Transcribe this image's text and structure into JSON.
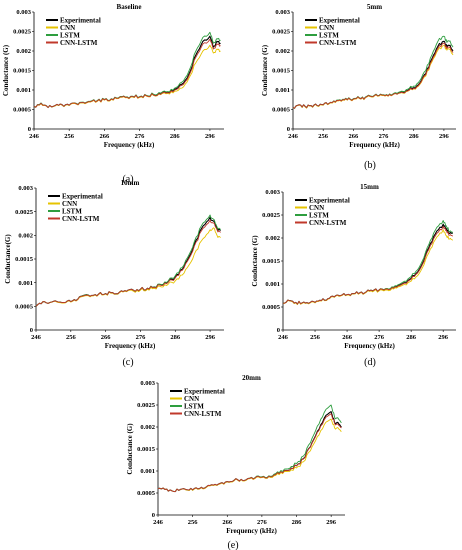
{
  "chart_data": [
    {
      "type": "line",
      "panel": "(a)",
      "title": "Baseline",
      "xlabel": "Frequency (kHz)",
      "ylabel": "Conductance (G)",
      "xlim": [
        246,
        300
      ],
      "ylim": [
        0,
        0.003
      ],
      "xticks": [
        246,
        256,
        266,
        276,
        286,
        296
      ],
      "yticks": [
        0,
        0.0005,
        0.001,
        0.0015,
        0.002,
        0.0025,
        0.003
      ],
      "legend": "top-left",
      "x": [
        246,
        248,
        250,
        252,
        254,
        256,
        258,
        260,
        262,
        264,
        266,
        268,
        270,
        272,
        274,
        276,
        278,
        280,
        282,
        284,
        286,
        288,
        290,
        292,
        294,
        296,
        297,
        298,
        299
      ],
      "series": [
        {
          "name": "Experimental",
          "color": "#000000",
          "values": [
            0.00058,
            0.00066,
            0.00055,
            0.0006,
            0.00062,
            0.00061,
            0.00065,
            0.00068,
            0.0007,
            0.00072,
            0.00075,
            0.00077,
            0.00079,
            0.00081,
            0.00083,
            0.00082,
            0.00085,
            0.00088,
            0.0009,
            0.00094,
            0.00102,
            0.00115,
            0.0014,
            0.0019,
            0.00225,
            0.00238,
            0.0021,
            0.00225,
            0.0022
          ]
        },
        {
          "name": "CNN",
          "color": "#e6c300",
          "values": [
            0.00058,
            0.00065,
            0.00055,
            0.00059,
            0.00061,
            0.0006,
            0.00064,
            0.00067,
            0.00069,
            0.00071,
            0.00074,
            0.00076,
            0.00078,
            0.0008,
            0.00082,
            0.00081,
            0.00084,
            0.00086,
            0.00088,
            0.00091,
            0.00097,
            0.00105,
            0.0013,
            0.0017,
            0.002,
            0.00215,
            0.00195,
            0.00205,
            0.002
          ]
        },
        {
          "name": "LSTM",
          "color": "#2e9e3f",
          "values": [
            0.00058,
            0.00067,
            0.00055,
            0.0006,
            0.00062,
            0.00061,
            0.00066,
            0.00069,
            0.00071,
            0.00073,
            0.00076,
            0.00078,
            0.0008,
            0.00082,
            0.00084,
            0.00083,
            0.00086,
            0.00089,
            0.00092,
            0.00096,
            0.00105,
            0.0012,
            0.00148,
            0.002,
            0.00235,
            0.00248,
            0.0022,
            0.00232,
            0.00228
          ]
        },
        {
          "name": "CNN-LSTM",
          "color": "#c0392b",
          "values": [
            0.00058,
            0.00066,
            0.00055,
            0.0006,
            0.00062,
            0.00061,
            0.00065,
            0.00068,
            0.0007,
            0.00072,
            0.00075,
            0.00077,
            0.00079,
            0.00081,
            0.00083,
            0.00082,
            0.00085,
            0.00087,
            0.00089,
            0.00093,
            0.001,
            0.00112,
            0.00136,
            0.00184,
            0.00218,
            0.0023,
            0.00205,
            0.00218,
            0.00214
          ]
        }
      ]
    },
    {
      "type": "line",
      "panel": "(b)",
      "title": "5mm",
      "xlabel": "Frequency (kHz)",
      "ylabel": "Conductance (G)",
      "xlim": [
        246,
        300
      ],
      "ylim": [
        0,
        0.003
      ],
      "xticks": [
        246,
        256,
        266,
        276,
        286,
        296
      ],
      "yticks": [
        0,
        0.0005,
        0.001,
        0.0015,
        0.002,
        0.0025,
        0.003
      ],
      "legend": "top-left",
      "x": [
        246,
        248,
        250,
        252,
        254,
        256,
        258,
        260,
        262,
        264,
        266,
        268,
        270,
        272,
        274,
        276,
        278,
        280,
        282,
        284,
        286,
        288,
        290,
        292,
        294,
        296,
        297,
        298,
        299
      ],
      "series": [
        {
          "name": "Experimental",
          "color": "#000000",
          "values": [
            0.00055,
            0.00062,
            0.00058,
            0.0006,
            0.0006,
            0.00062,
            0.00066,
            0.00069,
            0.00072,
            0.00075,
            0.00077,
            0.00079,
            0.00081,
            0.00083,
            0.00085,
            0.00087,
            0.00089,
            0.00092,
            0.00095,
            0.00099,
            0.00106,
            0.00118,
            0.00142,
            0.0018,
            0.00212,
            0.00225,
            0.0021,
            0.00215,
            0.002
          ]
        },
        {
          "name": "CNN",
          "color": "#e6c300",
          "values": [
            0.00055,
            0.00061,
            0.00057,
            0.00059,
            0.00059,
            0.00061,
            0.00065,
            0.00068,
            0.00071,
            0.00074,
            0.00076,
            0.00078,
            0.0008,
            0.00082,
            0.00084,
            0.00086,
            0.00088,
            0.00091,
            0.00093,
            0.00097,
            0.00103,
            0.00114,
            0.00136,
            0.00172,
            0.00202,
            0.00214,
            0.00202,
            0.00205,
            0.0019
          ]
        },
        {
          "name": "LSTM",
          "color": "#2e9e3f",
          "values": [
            0.00055,
            0.00062,
            0.00058,
            0.0006,
            0.0006,
            0.00062,
            0.00066,
            0.0007,
            0.00073,
            0.00076,
            0.00078,
            0.0008,
            0.00082,
            0.00084,
            0.00086,
            0.00088,
            0.0009,
            0.00093,
            0.00097,
            0.00102,
            0.0011,
            0.00124,
            0.0015,
            0.0019,
            0.00225,
            0.00238,
            0.00222,
            0.00226,
            0.0021
          ]
        },
        {
          "name": "CNN-LSTM",
          "color": "#c0392b",
          "values": [
            0.00055,
            0.00062,
            0.00058,
            0.0006,
            0.0006,
            0.00062,
            0.00066,
            0.00069,
            0.00072,
            0.00075,
            0.00077,
            0.00079,
            0.00081,
            0.00083,
            0.00085,
            0.00087,
            0.00089,
            0.00091,
            0.00094,
            0.00098,
            0.00104,
            0.00116,
            0.00139,
            0.00176,
            0.00207,
            0.0022,
            0.00206,
            0.0021,
            0.00196
          ]
        }
      ]
    },
    {
      "type": "line",
      "panel": "(c)",
      "title": "10mm",
      "xlabel": "Frequency (kHz)",
      "ylabel": "Conductance(G)",
      "xlim": [
        246,
        300
      ],
      "ylim": [
        0,
        0.003
      ],
      "xticks": [
        246,
        256,
        266,
        276,
        286,
        296
      ],
      "yticks": [
        0,
        0.0005,
        0.001,
        0.0015,
        0.002,
        0.0025,
        0.003
      ],
      "legend": "top-left",
      "x": [
        246,
        248,
        250,
        252,
        254,
        256,
        258,
        260,
        262,
        264,
        266,
        268,
        270,
        272,
        274,
        276,
        278,
        280,
        282,
        284,
        286,
        288,
        290,
        292,
        294,
        296,
        297,
        298,
        299
      ],
      "series": [
        {
          "name": "Experimental",
          "color": "#000000",
          "values": [
            0.0005,
            0.0006,
            0.00058,
            0.0006,
            0.00058,
            0.0006,
            0.00065,
            0.00074,
            0.00073,
            0.00076,
            0.00077,
            0.00079,
            0.0008,
            0.00082,
            0.00084,
            0.00086,
            0.00088,
            0.00091,
            0.00095,
            0.00102,
            0.00112,
            0.00128,
            0.00155,
            0.0019,
            0.0022,
            0.00238,
            0.0023,
            0.00215,
            0.0021
          ]
        },
        {
          "name": "CNN",
          "color": "#e6c300",
          "values": [
            0.0005,
            0.0006,
            0.00058,
            0.00059,
            0.00057,
            0.00059,
            0.00064,
            0.00072,
            0.00072,
            0.00075,
            0.00076,
            0.00078,
            0.00079,
            0.00081,
            0.00082,
            0.00084,
            0.00086,
            0.00088,
            0.00091,
            0.00097,
            0.00104,
            0.00116,
            0.00138,
            0.00168,
            0.00193,
            0.00212,
            0.00216,
            0.002,
            0.00195
          ]
        },
        {
          "name": "LSTM",
          "color": "#2e9e3f",
          "values": [
            0.0005,
            0.0006,
            0.00058,
            0.0006,
            0.00058,
            0.0006,
            0.00065,
            0.00074,
            0.00073,
            0.00076,
            0.00077,
            0.00079,
            0.0008,
            0.00082,
            0.00084,
            0.00086,
            0.00088,
            0.00091,
            0.00096,
            0.00104,
            0.00115,
            0.00132,
            0.0016,
            0.00196,
            0.00226,
            0.00243,
            0.00234,
            0.00218,
            0.00212
          ]
        },
        {
          "name": "CNN-LSTM",
          "color": "#c0392b",
          "values": [
            0.0005,
            0.0006,
            0.00058,
            0.0006,
            0.00058,
            0.0006,
            0.00065,
            0.00073,
            0.00073,
            0.00076,
            0.00077,
            0.00079,
            0.0008,
            0.00082,
            0.00084,
            0.00086,
            0.00088,
            0.0009,
            0.00094,
            0.00101,
            0.0011,
            0.00126,
            0.00152,
            0.00186,
            0.00215,
            0.00232,
            0.00226,
            0.00212,
            0.00206
          ]
        }
      ]
    },
    {
      "type": "line",
      "panel": "(d)",
      "title": "15mm",
      "xlabel": "Frequency (kHz)",
      "ylabel": "Conductance (G)",
      "xlim": [
        246,
        300
      ],
      "ylim": [
        0,
        0.003
      ],
      "xticks": [
        246,
        256,
        266,
        276,
        286,
        296
      ],
      "yticks": [
        0,
        0.0005,
        0.001,
        0.0015,
        0.002,
        0.0025,
        0.003
      ],
      "legend": "top-left",
      "x": [
        246,
        248,
        250,
        252,
        254,
        256,
        258,
        260,
        262,
        264,
        266,
        268,
        270,
        272,
        274,
        276,
        278,
        280,
        282,
        284,
        286,
        288,
        290,
        292,
        294,
        296,
        297,
        298,
        299
      ],
      "series": [
        {
          "name": "Experimental",
          "color": "#000000",
          "values": [
            0.00058,
            0.00064,
            0.0006,
            0.00059,
            0.00058,
            0.0006,
            0.00064,
            0.00068,
            0.00072,
            0.00075,
            0.00077,
            0.00079,
            0.00081,
            0.00083,
            0.00085,
            0.00087,
            0.00089,
            0.00093,
            0.00097,
            0.00103,
            0.00112,
            0.00126,
            0.00152,
            0.00188,
            0.00215,
            0.0023,
            0.0022,
            0.0021,
            0.0021
          ]
        },
        {
          "name": "CNN",
          "color": "#e6c300",
          "values": [
            0.00058,
            0.00063,
            0.00059,
            0.00058,
            0.00057,
            0.00059,
            0.00063,
            0.00067,
            0.00071,
            0.00074,
            0.00076,
            0.00078,
            0.0008,
            0.00082,
            0.00083,
            0.00085,
            0.00087,
            0.0009,
            0.00094,
            0.00099,
            0.00106,
            0.00118,
            0.00142,
            0.00176,
            0.00202,
            0.00218,
            0.00205,
            0.00198,
            0.00195
          ]
        },
        {
          "name": "LSTM",
          "color": "#2e9e3f",
          "values": [
            0.00058,
            0.00064,
            0.0006,
            0.00059,
            0.00058,
            0.0006,
            0.00064,
            0.00068,
            0.00072,
            0.00075,
            0.00077,
            0.00079,
            0.00081,
            0.00083,
            0.00085,
            0.00087,
            0.0009,
            0.00094,
            0.00099,
            0.00106,
            0.00116,
            0.00131,
            0.00158,
            0.00195,
            0.00223,
            0.00238,
            0.00226,
            0.00214,
            0.00212
          ]
        },
        {
          "name": "CNN-LSTM",
          "color": "#c0392b",
          "values": [
            0.00058,
            0.00064,
            0.0006,
            0.00059,
            0.00058,
            0.0006,
            0.00064,
            0.00068,
            0.00072,
            0.00075,
            0.00077,
            0.00079,
            0.00081,
            0.00083,
            0.00085,
            0.00087,
            0.00089,
            0.00092,
            0.00096,
            0.00102,
            0.0011,
            0.00124,
            0.00149,
            0.00184,
            0.0021,
            0.00225,
            0.00216,
            0.00206,
            0.00204
          ]
        }
      ]
    },
    {
      "type": "line",
      "panel": "(e)",
      "title": "20mm",
      "xlabel": "Frequency (kHz)",
      "ylabel": "Conductance (G)",
      "xlim": [
        246,
        300
      ],
      "ylim": [
        0,
        0.003
      ],
      "xticks": [
        246,
        256,
        266,
        276,
        286,
        296
      ],
      "yticks": [
        0,
        0.0005,
        0.001,
        0.0015,
        0.002,
        0.0025,
        0.003
      ],
      "legend": "top-left",
      "x": [
        246,
        248,
        250,
        252,
        254,
        256,
        258,
        260,
        262,
        264,
        266,
        268,
        270,
        272,
        274,
        276,
        278,
        280,
        282,
        284,
        286,
        288,
        290,
        292,
        294,
        296,
        297,
        298,
        299
      ],
      "series": [
        {
          "name": "Experimental",
          "color": "#000000",
          "values": [
            0.0006,
            0.00058,
            0.00055,
            0.00056,
            0.00058,
            0.00057,
            0.0006,
            0.00064,
            0.00068,
            0.00072,
            0.00076,
            0.00079,
            0.00081,
            0.00083,
            0.00084,
            0.00086,
            0.00088,
            0.00092,
            0.00096,
            0.00102,
            0.00112,
            0.00128,
            0.00155,
            0.0019,
            0.0022,
            0.00235,
            0.0021,
            0.0021,
            0.002
          ]
        },
        {
          "name": "CNN",
          "color": "#e6c300",
          "values": [
            0.0006,
            0.00058,
            0.00055,
            0.00056,
            0.00057,
            0.00056,
            0.00059,
            0.00063,
            0.00067,
            0.00071,
            0.00075,
            0.00078,
            0.0008,
            0.00082,
            0.00083,
            0.00085,
            0.00087,
            0.0009,
            0.00094,
            0.00099,
            0.00107,
            0.00121,
            0.00146,
            0.00178,
            0.00205,
            0.00218,
            0.00198,
            0.00198,
            0.0019
          ]
        },
        {
          "name": "LSTM",
          "color": "#2e9e3f",
          "values": [
            0.0006,
            0.00058,
            0.00055,
            0.00056,
            0.00058,
            0.00057,
            0.0006,
            0.00064,
            0.00068,
            0.00072,
            0.00076,
            0.00079,
            0.00081,
            0.00083,
            0.00085,
            0.00087,
            0.00089,
            0.00094,
            0.00099,
            0.00106,
            0.00117,
            0.00134,
            0.00164,
            0.00202,
            0.00233,
            0.0025,
            0.00222,
            0.0022,
            0.0021
          ]
        },
        {
          "name": "CNN-LSTM",
          "color": "#c0392b",
          "values": [
            0.0006,
            0.00058,
            0.00055,
            0.00056,
            0.00058,
            0.00057,
            0.0006,
            0.00064,
            0.00068,
            0.00072,
            0.00076,
            0.00079,
            0.00081,
            0.00083,
            0.00084,
            0.00086,
            0.00088,
            0.00092,
            0.00096,
            0.00102,
            0.00112,
            0.00127,
            0.00154,
            0.00188,
            0.00216,
            0.0023,
            0.00208,
            0.00206,
            0.00198
          ]
        }
      ]
    }
  ]
}
